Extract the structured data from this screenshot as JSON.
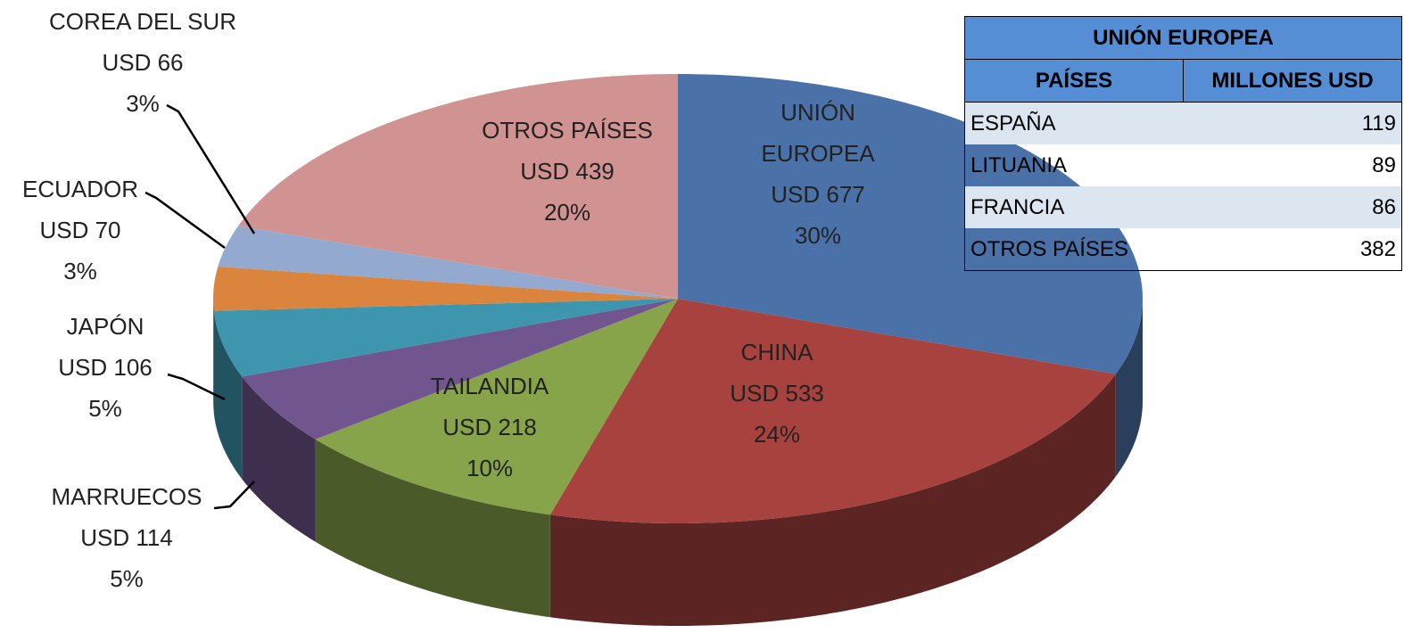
{
  "chart_data": {
    "type": "pie",
    "categories": [
      "UNIÓN EUROPEA",
      "CHINA",
      "TAILANDIA",
      "MARRUECOS",
      "JAPÓN",
      "ECUADOR",
      "COREA DEL SUR",
      "OTROS PAÍSES"
    ],
    "values": [
      677,
      533,
      218,
      114,
      106,
      70,
      66,
      439
    ],
    "value_labels": [
      "USD 677",
      "USD 533",
      "USD 218",
      "USD 114",
      "USD 106",
      "USD 70",
      "USD 66",
      "USD 439"
    ],
    "percentages": [
      30,
      24,
      10,
      5,
      5,
      3,
      3,
      20
    ],
    "percentage_labels": [
      "30%",
      "24%",
      "10%",
      "5%",
      "5%",
      "3%",
      "3%",
      "20%"
    ],
    "colors": [
      "#4a72a8",
      "#a8423f",
      "#87a44a",
      "#71558f",
      "#3d96ae",
      "#db843d",
      "#93a9cf",
      "#d09392"
    ]
  },
  "table": {
    "title": "UNIÓN EUROPEA",
    "headers": [
      "PAÍSES",
      "MILLONES USD"
    ],
    "rows": [
      [
        "ESPAÑA",
        "119"
      ],
      [
        "LITUANIA",
        "89"
      ],
      [
        "FRANCIA",
        "86"
      ],
      [
        "OTROS PAÍSES",
        "382"
      ]
    ]
  }
}
